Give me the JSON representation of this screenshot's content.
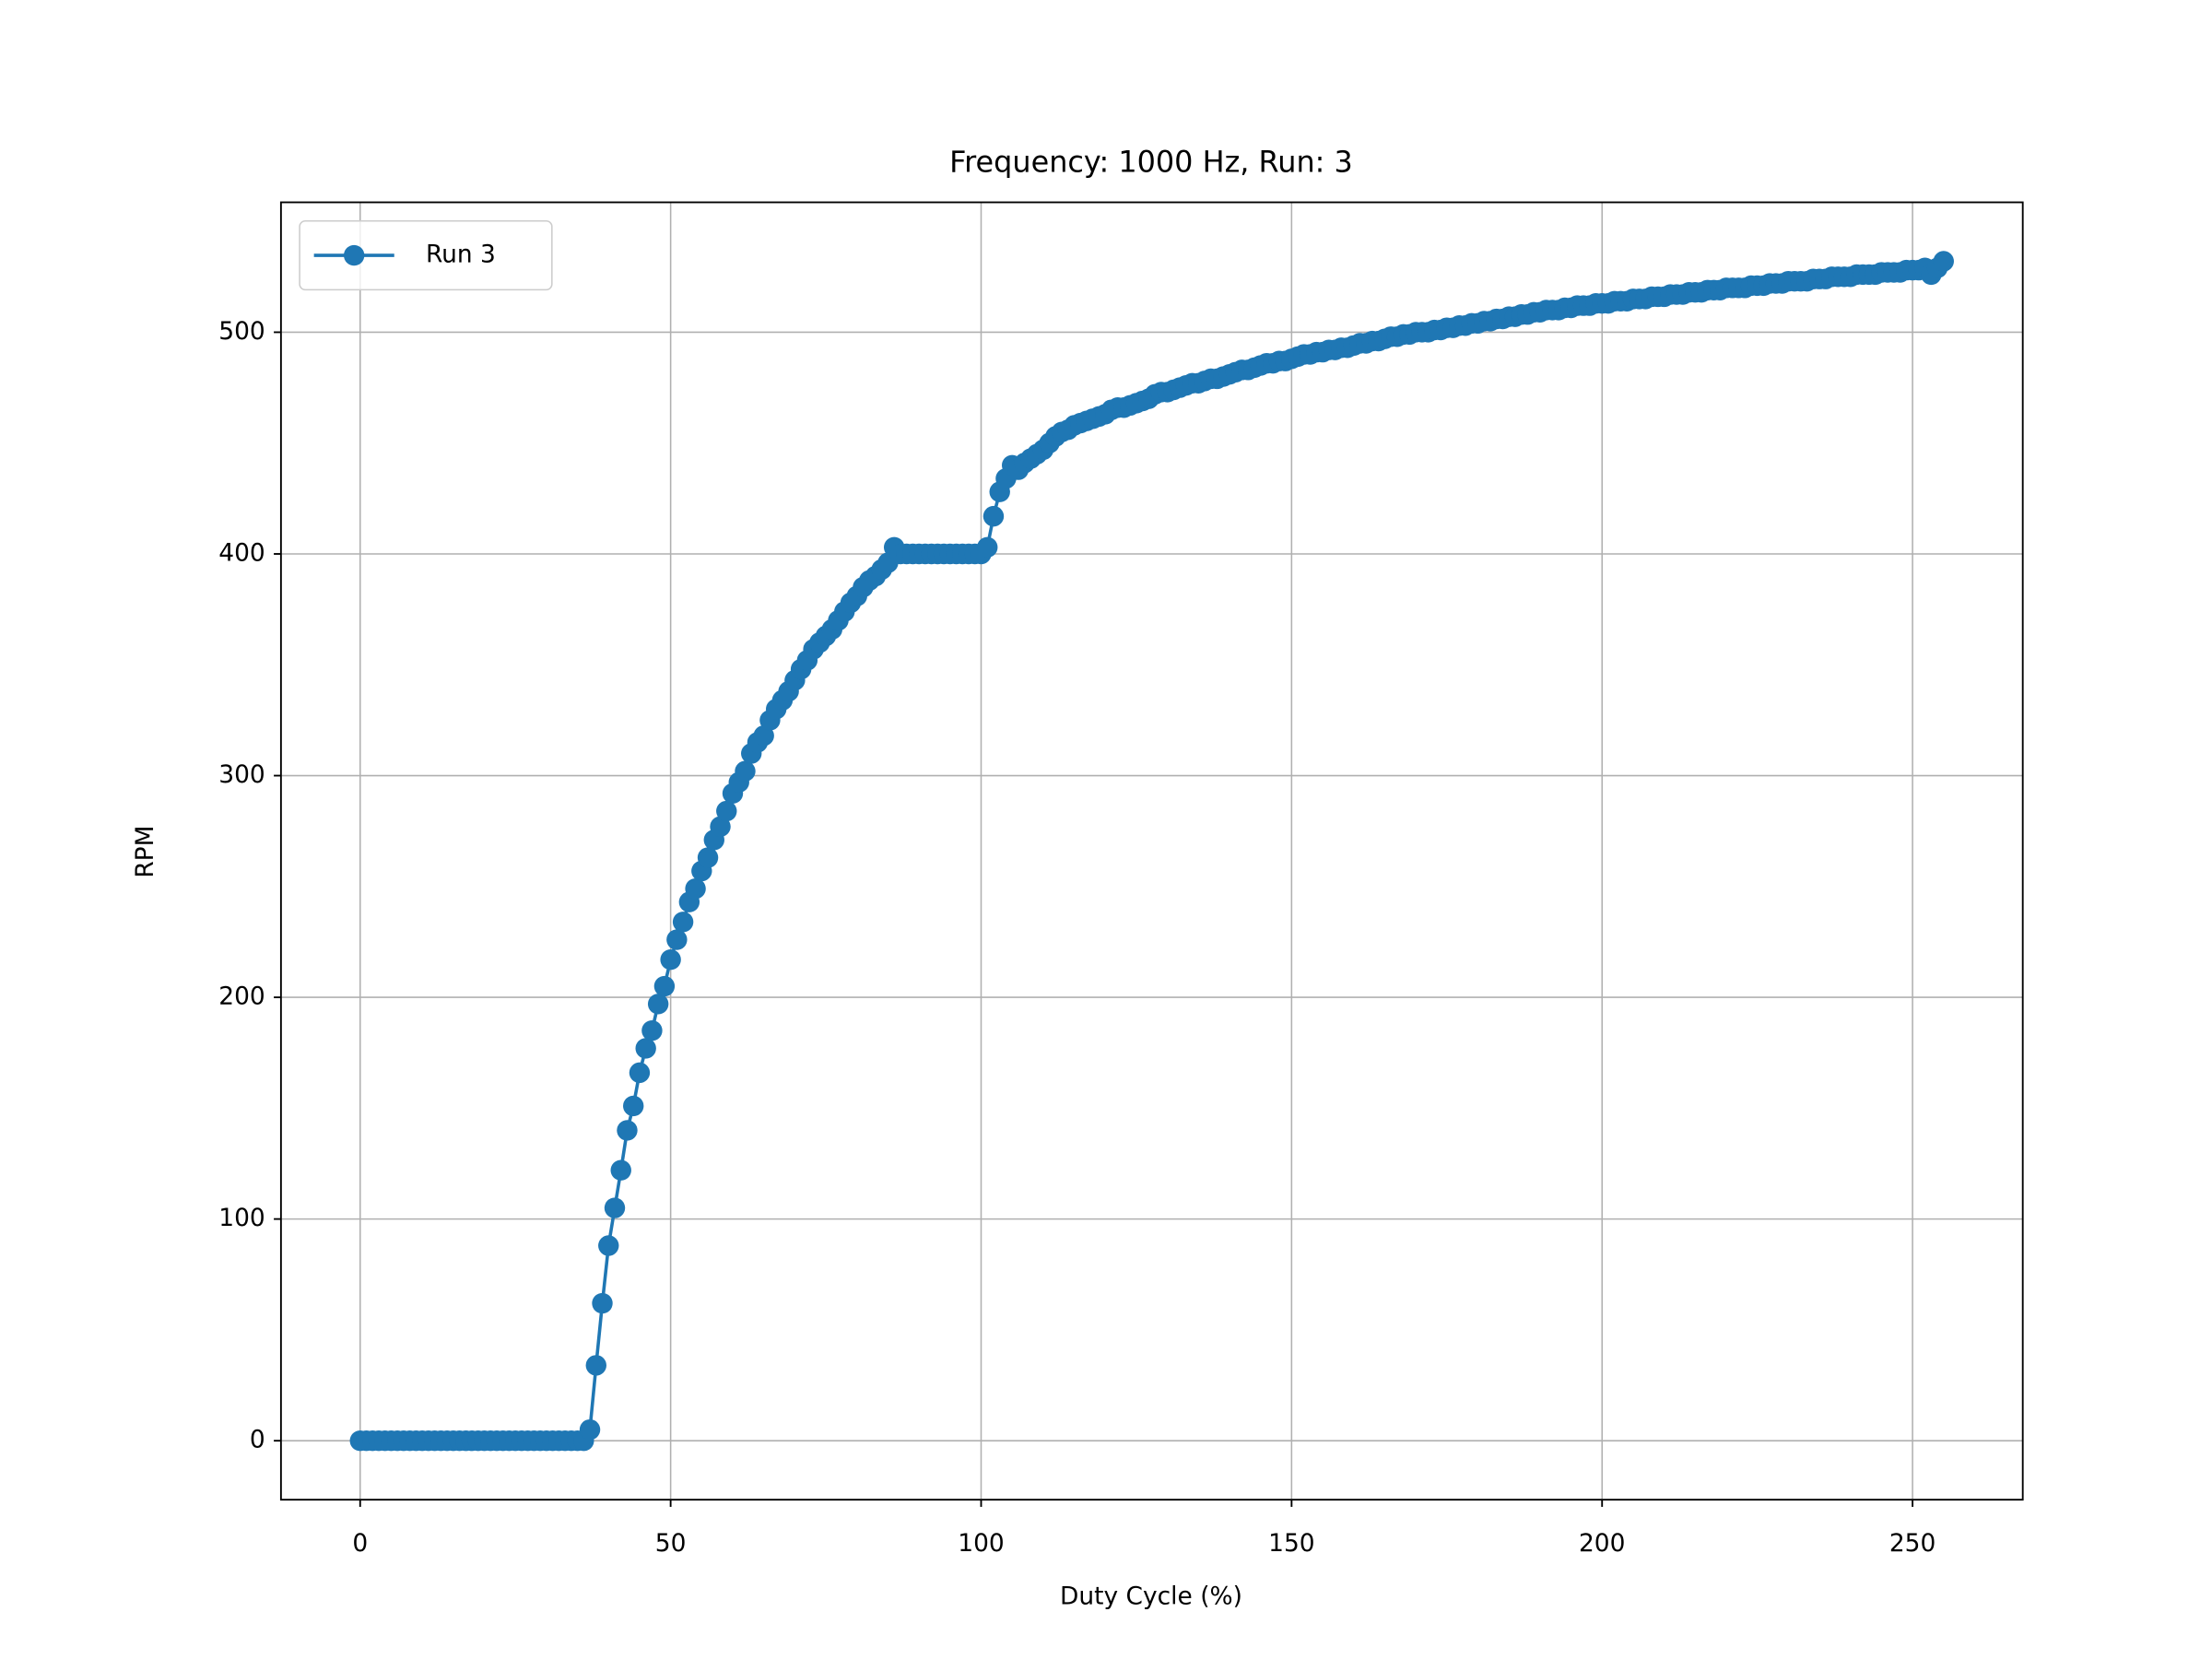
{
  "chart_data": {
    "type": "line",
    "title": "Frequency: 1000 Hz, Run: 3",
    "x_label": "Duty Cycle (%)",
    "y_label": "RPM",
    "x": [
      0,
      1,
      2,
      3,
      4,
      5,
      6,
      7,
      8,
      9,
      10,
      11,
      12,
      13,
      14,
      15,
      16,
      17,
      18,
      19,
      20,
      21,
      22,
      23,
      24,
      25,
      26,
      27,
      28,
      29,
      30,
      31,
      32,
      33,
      34,
      35,
      36,
      37,
      38,
      39,
      40,
      41,
      42,
      43,
      44,
      45,
      46,
      47,
      48,
      49,
      50,
      51,
      52,
      53,
      54,
      55,
      56,
      57,
      58,
      59,
      60,
      61,
      62,
      63,
      64,
      65,
      66,
      67,
      68,
      69,
      70,
      71,
      72,
      73,
      74,
      75,
      76,
      77,
      78,
      79,
      80,
      81,
      82,
      83,
      84,
      85,
      86,
      87,
      88,
      89,
      90,
      91,
      92,
      93,
      94,
      95,
      96,
      97,
      98,
      99,
      100,
      101,
      102,
      103,
      104,
      105,
      106,
      107,
      108,
      109,
      110,
      111,
      112,
      113,
      114,
      115,
      116,
      117,
      118,
      119,
      120,
      121,
      122,
      123,
      124,
      125,
      126,
      127,
      128,
      129,
      130,
      131,
      132,
      133,
      134,
      135,
      136,
      137,
      138,
      139,
      140,
      141,
      142,
      143,
      144,
      145,
      146,
      147,
      148,
      149,
      150,
      151,
      152,
      153,
      154,
      155,
      156,
      157,
      158,
      159,
      160,
      161,
      162,
      163,
      164,
      165,
      166,
      167,
      168,
      169,
      170,
      171,
      172,
      173,
      174,
      175,
      176,
      177,
      178,
      179,
      180,
      181,
      182,
      183,
      184,
      185,
      186,
      187,
      188,
      189,
      190,
      191,
      192,
      193,
      194,
      195,
      196,
      197,
      198,
      199,
      200,
      201,
      202,
      203,
      204,
      205,
      206,
      207,
      208,
      209,
      210,
      211,
      212,
      213,
      214,
      215,
      216,
      217,
      218,
      219,
      220,
      221,
      222,
      223,
      224,
      225,
      226,
      227,
      228,
      229,
      230,
      231,
      232,
      233,
      234,
      235,
      236,
      237,
      238,
      239,
      240,
      241,
      242,
      243,
      244,
      245,
      246,
      247,
      248,
      249,
      250,
      251,
      252,
      253,
      254,
      255
    ],
    "series": [
      {
        "name": "Run 3",
        "color": "#1f77b4",
        "values": [
          0,
          0,
          0,
          0,
          0,
          0,
          0,
          0,
          0,
          0,
          0,
          0,
          0,
          0,
          0,
          0,
          0,
          0,
          0,
          0,
          0,
          0,
          0,
          0,
          0,
          0,
          0,
          0,
          0,
          0,
          0,
          0,
          0,
          0,
          0,
          0,
          0,
          5,
          34,
          62,
          88,
          105,
          122,
          140,
          151,
          166,
          177,
          185,
          197,
          205,
          217,
          226,
          234,
          243,
          249,
          257,
          263,
          271,
          277,
          284,
          292,
          297,
          302,
          310,
          315,
          318,
          325,
          330,
          334,
          338,
          343,
          348,
          352,
          357,
          360,
          363,
          366,
          370,
          374,
          378,
          381,
          385,
          388,
          390,
          393,
          396,
          403,
          400,
          400,
          400,
          400,
          400,
          400,
          400,
          400,
          400,
          400,
          400,
          400,
          400,
          400,
          403,
          417,
          428,
          434,
          440,
          438,
          441,
          443,
          445,
          447,
          450,
          453,
          455,
          456,
          458,
          459,
          460,
          461,
          462,
          463,
          465,
          466,
          466,
          467,
          468,
          469,
          470,
          472,
          473,
          473,
          474,
          475,
          476,
          477,
          477,
          478,
          479,
          479,
          480,
          481,
          482,
          483,
          483,
          484,
          485,
          486,
          486,
          487,
          487,
          488,
          489,
          490,
          490,
          491,
          491,
          492,
          492,
          493,
          493,
          494,
          495,
          495,
          496,
          496,
          497,
          498,
          498,
          499,
          499,
          500,
          500,
          500,
          501,
          501,
          502,
          502,
          503,
          503,
          504,
          504,
          505,
          505,
          506,
          506,
          507,
          507,
          508,
          508,
          509,
          509,
          510,
          510,
          510,
          511,
          511,
          512,
          512,
          512,
          513,
          513,
          513,
          514,
          514,
          514,
          515,
          515,
          515,
          516,
          516,
          516,
          517,
          517,
          517,
          518,
          518,
          518,
          519,
          519,
          519,
          520,
          520,
          520,
          520,
          521,
          521,
          521,
          522,
          522,
          522,
          523,
          523,
          523,
          523,
          524,
          524,
          524,
          525,
          525,
          525,
          525,
          526,
          526,
          526,
          526,
          527,
          527,
          527,
          527,
          528,
          528,
          528,
          529,
          526,
          529,
          532
        ]
      }
    ],
    "xlim": [
      -12.75,
      267.75
    ],
    "ylim": [
      -26.6,
      558.6
    ],
    "xticks": [
      0,
      50,
      100,
      150,
      200,
      250
    ],
    "yticks": [
      0,
      100,
      200,
      300,
      400,
      500
    ],
    "grid": true,
    "legend": "upper-left"
  }
}
